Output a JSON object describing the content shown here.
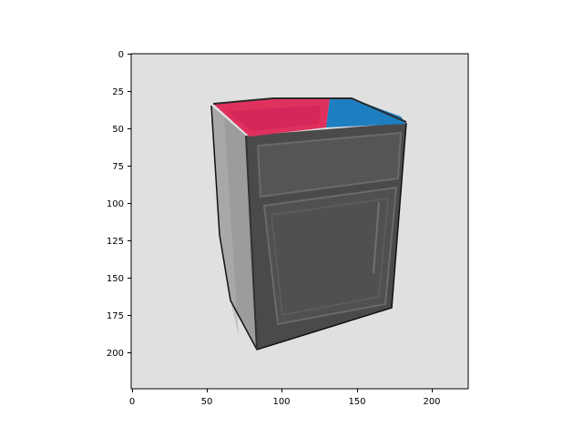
{
  "figure": {
    "x_ticks": [
      "0",
      "50",
      "100",
      "150",
      "200"
    ],
    "y_ticks": [
      "0",
      "25",
      "50",
      "75",
      "100",
      "125",
      "150",
      "175",
      "200"
    ]
  },
  "image": {
    "subject": "kitchen base cabinet",
    "background_color": "#e0e0e0",
    "cabinet_front_color": "#4a4a4a",
    "cabinet_side_color": "#9c9c9c",
    "top_pink_color": "#e0305e",
    "top_blue_color": "#1e7fc0"
  }
}
